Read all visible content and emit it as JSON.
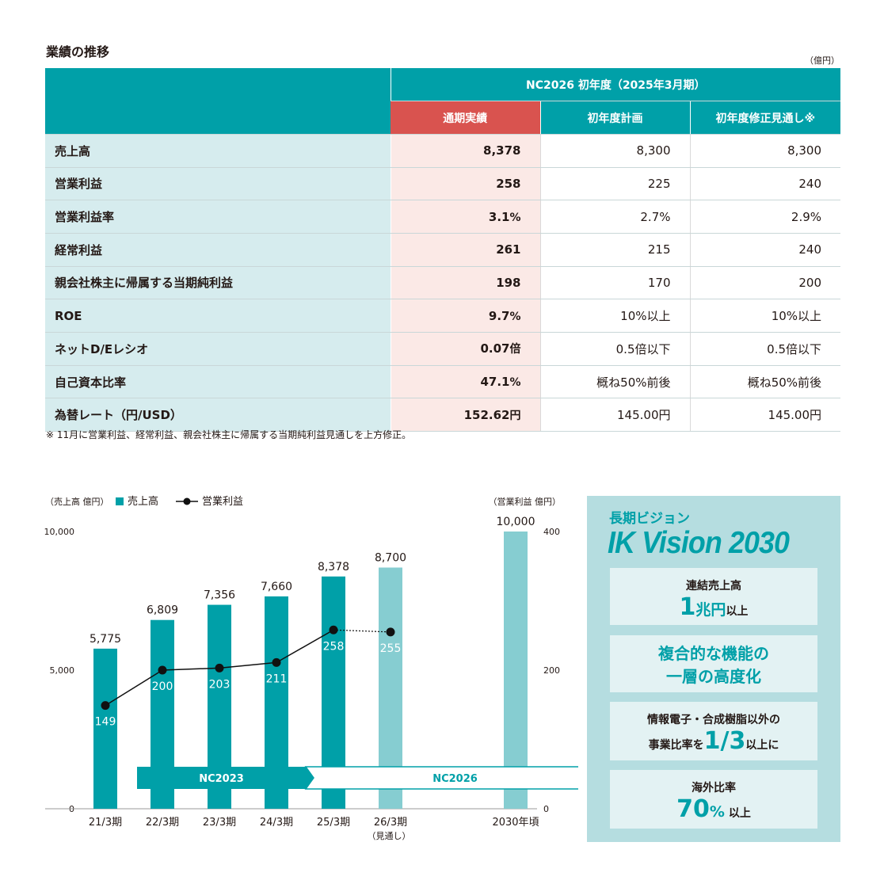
{
  "heading": "業績の推移",
  "unit": "（億円）",
  "table": {
    "group_header": "NC2026 初年度（2025年3月期）",
    "columns": [
      "通期実績",
      "初年度計画",
      "初年度修正見通し※"
    ],
    "rows": [
      {
        "label": "売上高",
        "actual": "8,378",
        "actual_unit": "",
        "plan": "8,300",
        "revised": "8,300"
      },
      {
        "label": "営業利益",
        "actual": "258",
        "actual_unit": "",
        "plan": "225",
        "revised": "240"
      },
      {
        "label": "営業利益率",
        "actual": "3.1",
        "actual_unit": "%",
        "plan": "2.7%",
        "revised": "2.9%"
      },
      {
        "label": "経常利益",
        "actual": "261",
        "actual_unit": "",
        "plan": "215",
        "revised": "240"
      },
      {
        "label": "親会社株主に帰属する当期純利益",
        "actual": "198",
        "actual_unit": "",
        "plan": "170",
        "revised": "200"
      },
      {
        "label": "ROE",
        "actual": "9.7",
        "actual_unit": "%",
        "plan": "10%以上",
        "revised": "10%以上"
      },
      {
        "label": "ネットD/Eレシオ",
        "actual": "0.07",
        "actual_unit": "倍",
        "plan": "0.5倍以下",
        "revised": "0.5倍以下"
      },
      {
        "label": "自己資本比率",
        "actual": "47.1",
        "actual_unit": "%",
        "plan": "概ね50%前後",
        "revised": "概ね50%前後"
      },
      {
        "label": "為替レート（円/USD）",
        "actual": "152.62",
        "actual_unit": "円",
        "plan": "145.00円",
        "revised": "145.00円"
      }
    ]
  },
  "note": "※ 11月に営業利益、経常利益、親会社株主に帰属する当期純利益見通しを上方修正。",
  "chart_data": {
    "type": "bar",
    "left_axis_label": "（売上高 億円）",
    "right_axis_label": "（営業利益 億円）",
    "legend": [
      {
        "name": "売上高",
        "kind": "bar"
      },
      {
        "name": "営業利益",
        "kind": "line"
      }
    ],
    "categories": [
      "21/3期",
      "22/3期",
      "23/3期",
      "24/3期",
      "25/3期",
      "26/3期",
      "2030年頃"
    ],
    "category_sub": [
      "",
      "",
      "",
      "",
      "",
      "（見通し）",
      ""
    ],
    "series": [
      {
        "name": "売上高",
        "axis": "left",
        "values": [
          5775,
          6809,
          7356,
          7660,
          8378,
          8700,
          10000
        ],
        "labels": [
          "5,775",
          "6,809",
          "7,356",
          "7,660",
          "8,378",
          "8,700",
          "10,000"
        ],
        "forecast": [
          false,
          false,
          false,
          false,
          false,
          true,
          true
        ]
      },
      {
        "name": "営業利益",
        "axis": "right",
        "values": [
          149,
          200,
          203,
          211,
          258,
          255,
          null
        ],
        "labels": [
          "149",
          "200",
          "203",
          "211",
          "258",
          "255",
          ""
        ],
        "forecast_from_index": 5
      }
    ],
    "left_ylim": [
      0,
      10000
    ],
    "right_ylim": [
      0,
      400
    ],
    "left_ticks": [
      "0",
      "5,000",
      "10,000"
    ],
    "right_ticks": [
      "0",
      "200",
      "400"
    ],
    "plans": [
      {
        "label": "NC2023",
        "from": 0,
        "to": 4
      },
      {
        "label": "NC2026",
        "from": 4,
        "to": 6
      }
    ],
    "colors": {
      "bar": "#00a0a8",
      "bar_forecast": "#86cdd1",
      "line": "#111111"
    }
  },
  "vision": {
    "subtitle": "長期ビジョン",
    "title": "IK Vision 2030",
    "box1": {
      "label": "連結売上高",
      "big": "1",
      "mid": "兆円",
      "small": "以上"
    },
    "box2": {
      "line1": "複合的な機能の",
      "line2": "一層の高度化"
    },
    "box3": {
      "line1": "情報電子・合成樹脂以外の",
      "pre": "事業比率を",
      "big": "1/3",
      "post": "以上に"
    },
    "box4": {
      "label": "海外比率",
      "big": "70",
      "mid": "%",
      "small": " 以上"
    }
  }
}
